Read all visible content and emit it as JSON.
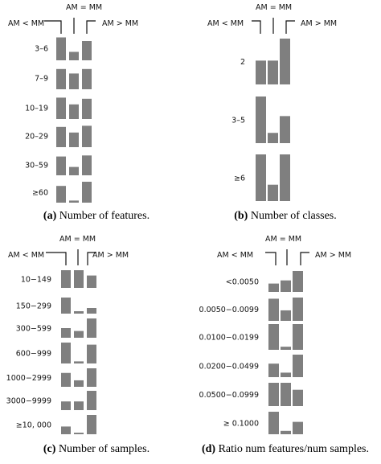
{
  "colors": {
    "bar": "#7f7f7f",
    "text": "#111111"
  },
  "chart_data": [
    {
      "type": "bar",
      "header": {
        "left": "AM < MM",
        "mid": "AM = MM",
        "right": "AM > MM"
      },
      "series_order": [
        "AM < MM",
        "AM = MM",
        "AM > MM"
      ],
      "caption_letter": "(a)",
      "caption_text": " Number of features.",
      "categories": [
        "3–6",
        "7–9",
        "10–19",
        "20–29",
        "30–59",
        "≥60"
      ],
      "values": [
        [
          0.95,
          0.35,
          0.8
        ],
        [
          0.9,
          0.7,
          0.9
        ],
        [
          0.95,
          0.65,
          0.9
        ],
        [
          0.9,
          0.65,
          0.95
        ],
        [
          0.9,
          0.4,
          0.95
        ],
        [
          0.8,
          0.1,
          1.0
        ]
      ]
    },
    {
      "type": "bar",
      "header": {
        "left": "AM < MM",
        "mid": "AM = MM",
        "right": "AM > MM"
      },
      "series_order": [
        "AM < MM",
        "AM = MM",
        "AM > MM"
      ],
      "caption_letter": "(b)",
      "caption_text": " Number of classes.",
      "categories": [
        "2",
        "3–5",
        "≥6"
      ],
      "values": [
        [
          0.52,
          0.52,
          1.0
        ],
        [
          1.0,
          0.22,
          0.58
        ],
        [
          1.0,
          0.35,
          1.0
        ]
      ]
    },
    {
      "type": "bar",
      "header": {
        "left": "AM < MM",
        "mid": "AM = MM",
        "right": "AM > MM"
      },
      "series_order": [
        "AM < MM",
        "AM = MM",
        "AM > MM"
      ],
      "caption_letter": "(c)",
      "caption_text": " Number of samples.",
      "categories": [
        "10−149",
        "150−299",
        "300−599",
        "600−999",
        "1000−2999",
        "3000−9999",
        "≥10, 000"
      ],
      "values": [
        [
          1.0,
          1.0,
          0.7
        ],
        [
          1.0,
          0.15,
          0.35
        ],
        [
          0.5,
          0.35,
          1.0
        ],
        [
          1.0,
          0.1,
          0.9
        ],
        [
          0.75,
          0.35,
          1.0
        ],
        [
          0.45,
          0.45,
          1.0
        ],
        [
          0.4,
          0.08,
          1.0
        ]
      ]
    },
    {
      "type": "bar",
      "header": {
        "left": "AM < MM",
        "mid": "AM = MM",
        "right": "AM > MM"
      },
      "series_order": [
        "AM < MM",
        "AM = MM",
        "AM > MM"
      ],
      "caption_letter": "(d)",
      "caption_text": " Ratio num features/num samples.",
      "categories": [
        "<0.0050",
        "0.0050−0.0099",
        "0.0100−0.0199",
        "0.0200−0.0499",
        "0.0500−0.0999",
        "≥ 0.1000"
      ],
      "values": [
        [
          0.4,
          0.55,
          1.0
        ],
        [
          0.95,
          0.45,
          1.0
        ],
        [
          1.0,
          0.12,
          1.0
        ],
        [
          0.6,
          0.2,
          1.0
        ],
        [
          1.0,
          1.0,
          0.7
        ],
        [
          1.0,
          0.15,
          0.55
        ]
      ]
    }
  ]
}
